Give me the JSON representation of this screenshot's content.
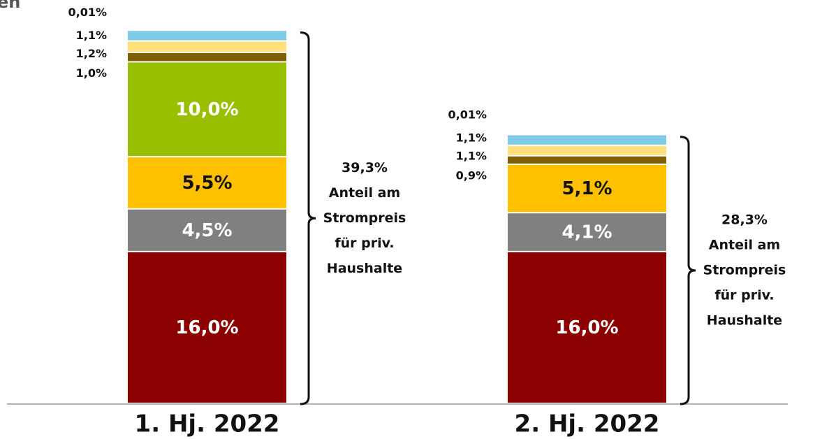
{
  "chart_data": {
    "type": "stacked_bar",
    "title": "en",
    "categories": [
      "1. Hj. 2022",
      "2. Hj. 2022"
    ],
    "series": [
      {
        "color": "#8b0000",
        "values": [
          16.0,
          16.0
        ],
        "value_labels": [
          "16,0%",
          "16,0%"
        ]
      },
      {
        "color": "#808080",
        "values": [
          4.5,
          4.1
        ],
        "value_labels": [
          "4,5%",
          "4,1%"
        ]
      },
      {
        "color": "#ffc000",
        "values": [
          5.5,
          5.1
        ],
        "value_labels": [
          "5,5%",
          "5,1%"
        ]
      },
      {
        "color": "#99c000",
        "values": [
          10.0,
          null
        ],
        "value_labels": [
          "10,0%",
          null
        ]
      },
      {
        "color": "#7f6000",
        "values": [
          1.0,
          0.9
        ],
        "value_labels": [
          "1,0%",
          "0,9%"
        ]
      },
      {
        "color": "#ffe07a",
        "values": [
          1.2,
          1.1
        ],
        "value_labels": [
          "1,2%",
          "1,1%"
        ]
      },
      {
        "color": "#7ecbe8",
        "values": [
          1.1,
          1.1
        ],
        "value_labels": [
          "1,1%",
          "1,1%"
        ]
      },
      {
        "color": "#5b9bd5",
        "values": [
          0.01,
          0.01
        ],
        "value_labels": [
          "0,01%",
          "0,01%"
        ]
      }
    ],
    "ylim": [
      0,
      42
    ],
    "annotations": [
      [
        "39,3%",
        "Anteil am",
        "Strompreis",
        "für priv.",
        "Haushalte"
      ],
      [
        "28,3%",
        "Anteil am",
        "Strompreis",
        "für priv.",
        "Haushalte"
      ]
    ]
  }
}
